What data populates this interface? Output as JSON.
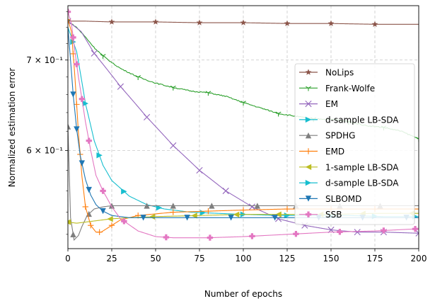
{
  "chart_data": {
    "type": "line",
    "title": "",
    "xlabel": "Number of epochs",
    "ylabel": "Normalized estimation error",
    "xlim": [
      0,
      200
    ],
    "ylim": [
      0.5075,
      0.768
    ],
    "yscale": "log",
    "grid": true,
    "legend_position": "center-right",
    "x_ticks": [
      0,
      25,
      50,
      75,
      100,
      125,
      150,
      175,
      200
    ],
    "y_ticks": [
      {
        "value": 0.6,
        "label": "6 × 10⁻¹"
      },
      {
        "value": 0.7,
        "label": "7 × 10⁻¹"
      }
    ],
    "series": [
      {
        "name": "NoLips",
        "color": "#8c564b",
        "marker": "star",
        "x": [
          0,
          10,
          25,
          50,
          75,
          100,
          125,
          150,
          175,
          200
        ],
        "values": [
          0.748,
          0.748,
          0.747,
          0.747,
          0.746,
          0.746,
          0.745,
          0.745,
          0.744,
          0.744
        ]
      },
      {
        "name": "Frank-Wolfe",
        "color": "#2ca02c",
        "marker": "tri_down",
        "x": [
          0,
          5,
          10,
          15,
          20,
          25,
          30,
          35,
          40,
          50,
          60,
          70,
          80,
          90,
          100,
          110,
          120,
          130,
          140,
          150,
          160,
          170,
          180,
          190,
          200
        ],
        "values": [
          0.748,
          0.74,
          0.728,
          0.715,
          0.705,
          0.697,
          0.69,
          0.685,
          0.68,
          0.673,
          0.668,
          0.664,
          0.662,
          0.658,
          0.651,
          0.645,
          0.639,
          0.636,
          0.633,
          0.633,
          0.63,
          0.626,
          0.624,
          0.62,
          0.612
        ],
        "noise": 0.0012
      },
      {
        "name": "EM",
        "color": "#9467bd",
        "marker": "x",
        "x": [
          0,
          7.5,
          15,
          30,
          45,
          60,
          75,
          90,
          105,
          120,
          135,
          150,
          165,
          180,
          200
        ],
        "values": [
          0.748,
          0.735,
          0.708,
          0.669,
          0.635,
          0.605,
          0.58,
          0.56,
          0.545,
          0.534,
          0.528,
          0.524,
          0.522,
          0.522,
          0.521
        ]
      },
      {
        "name": "d-sample LB-SDA",
        "color": "#17becf",
        "marker": "triangle_right",
        "x": [
          0,
          5,
          10,
          15,
          20,
          25,
          35,
          45,
          55,
          70,
          85,
          100,
          120,
          140,
          160,
          180,
          200
        ],
        "values": [
          0.74,
          0.71,
          0.65,
          0.61,
          0.585,
          0.57,
          0.555,
          0.547,
          0.543,
          0.54,
          0.539,
          0.538,
          0.537,
          0.537,
          0.537,
          0.536,
          0.536
        ]
      },
      {
        "name": "SPDHG",
        "color": "#7f7f7f",
        "marker": "triangle_up",
        "x": [
          0,
          1.5,
          3.5,
          6,
          8,
          11,
          15,
          20,
          25,
          40,
          60,
          80,
          100,
          120,
          140,
          160,
          180,
          200
        ],
        "values": [
          0.625,
          0.535,
          0.515,
          0.519,
          0.527,
          0.537,
          0.543,
          0.545,
          0.546,
          0.546,
          0.546,
          0.546,
          0.546,
          0.546,
          0.546,
          0.546,
          0.546,
          0.546
        ]
      },
      {
        "name": "EMD",
        "color": "#ff7f0e",
        "marker": "plus",
        "x": [
          0,
          2,
          4,
          6,
          8,
          10,
          13,
          16,
          19,
          23,
          30,
          40,
          60,
          80,
          100,
          125,
          150,
          175,
          200
        ],
        "values": [
          0.75,
          0.735,
          0.68,
          0.618,
          0.574,
          0.545,
          0.528,
          0.522,
          0.522,
          0.526,
          0.533,
          0.537,
          0.54,
          0.541,
          0.542,
          0.543,
          0.543,
          0.543,
          0.543
        ]
      },
      {
        "name": "1-sample LB-SDA",
        "color": "#bcbd22",
        "marker": "triangle_left",
        "x": [
          0,
          5,
          10,
          15,
          25,
          35,
          50,
          75,
          100,
          125,
          150,
          175,
          200
        ],
        "values": [
          0.531,
          0.53,
          0.531,
          0.532,
          0.534,
          0.535,
          0.536,
          0.537,
          0.538,
          0.538,
          0.538,
          0.539,
          0.539
        ]
      },
      {
        "name": "d-sample LB-SDA",
        "color": "#17becf",
        "marker": "triangle_right",
        "duplicate": true,
        "x": [
          0,
          5
        ],
        "values": [
          0.74,
          0.71
        ]
      },
      {
        "name": "SLBOMD",
        "color": "#1f77b4",
        "marker": "triangle_down",
        "x": [
          0,
          1.5,
          3,
          5,
          7,
          10,
          13,
          16,
          20,
          25,
          35,
          50,
          75,
          100,
          125,
          150,
          175,
          200
        ],
        "values": [
          0.74,
          0.7,
          0.66,
          0.622,
          0.595,
          0.571,
          0.556,
          0.547,
          0.541,
          0.537,
          0.535,
          0.535,
          0.535,
          0.535,
          0.535,
          0.535,
          0.535,
          0.535
        ]
      },
      {
        "name": "SSB",
        "color": "#e377c2",
        "marker": "plus_filled",
        "x": [
          0,
          2,
          4,
          6,
          8,
          10,
          13,
          16,
          20,
          25,
          30,
          40,
          50,
          60,
          80,
          100,
          125,
          150,
          175,
          200
        ],
        "values": [
          0.76,
          0.745,
          0.71,
          0.68,
          0.655,
          0.63,
          0.6,
          0.575,
          0.56,
          0.545,
          0.534,
          0.523,
          0.518,
          0.517,
          0.517,
          0.518,
          0.52,
          0.522,
          0.523,
          0.525
        ]
      }
    ],
    "legend_entries": [
      "NoLips",
      "Frank-Wolfe",
      "EM",
      "d-sample LB-SDA",
      "SPDHG",
      "EMD",
      "1-sample LB-SDA",
      "d-sample LB-SDA",
      "SLBOMD",
      "SSB"
    ]
  }
}
